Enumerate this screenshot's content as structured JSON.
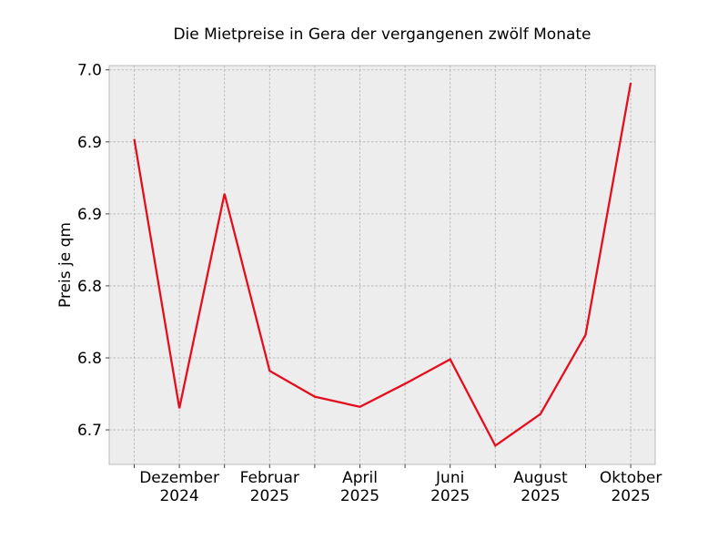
{
  "chart_data": {
    "type": "line",
    "title": "Die Mietpreise in Gera der vergangenen zwölf Monate",
    "xlabel": "",
    "ylabel": "Preis je qm",
    "x": [
      "2024-11",
      "2024-12",
      "2025-01",
      "2025-02",
      "2025-03",
      "2025-04",
      "2025-05",
      "2025-06",
      "2025-07",
      "2025-08",
      "2025-09",
      "2025-10"
    ],
    "values": [
      6.902,
      6.715,
      6.864,
      6.741,
      6.723,
      6.716,
      6.732,
      6.749,
      6.689,
      6.711,
      6.766,
      6.941
    ],
    "x_tick_labels": [
      {
        "month": "2024-12",
        "line1": "Dezember",
        "line2": "2024"
      },
      {
        "month": "2025-02",
        "line1": "Februar",
        "line2": "2025"
      },
      {
        "month": "2025-04",
        "line1": "April",
        "line2": "2025"
      },
      {
        "month": "2025-06",
        "line1": "Juni",
        "line2": "2025"
      },
      {
        "month": "2025-08",
        "line1": "August",
        "line2": "2025"
      },
      {
        "month": "2025-10",
        "line1": "Oktober",
        "line2": "2025"
      }
    ],
    "y_ticks": [
      6.7,
      6.75,
      6.8,
      6.85,
      6.9,
      6.95
    ],
    "y_tick_labels": [
      "6.7",
      "6.8",
      "6.8",
      "6.9",
      "6.9",
      "7.0"
    ],
    "ylim": [
      6.676,
      6.953
    ],
    "grid": true,
    "line_color": "#e30f1e",
    "background_color": "#ededed"
  }
}
